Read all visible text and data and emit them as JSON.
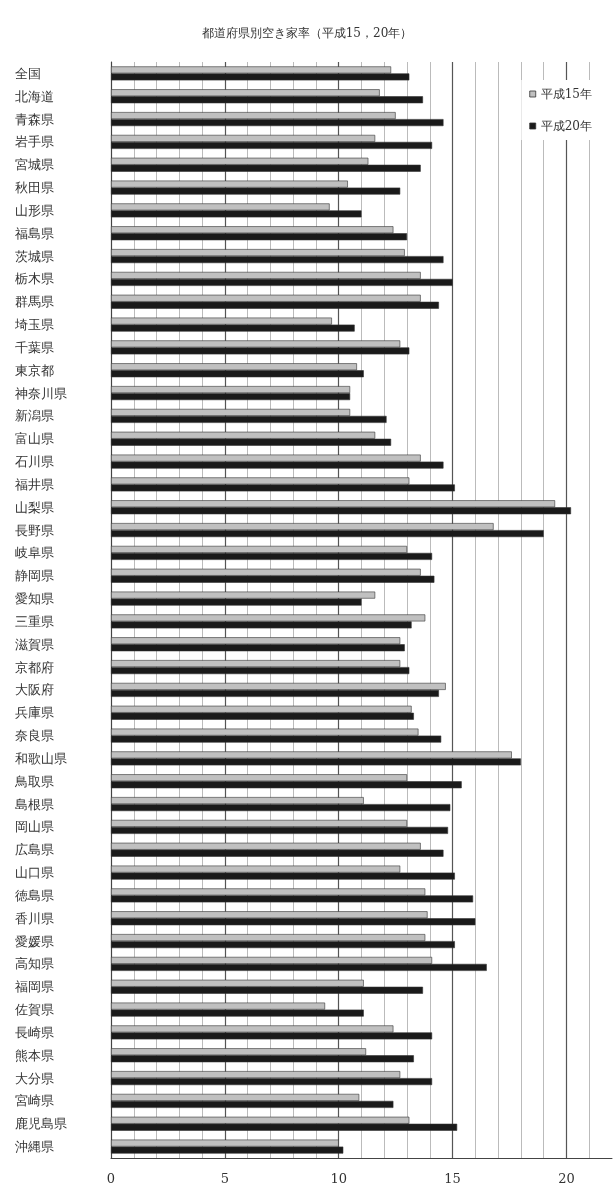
{
  "chart_data": {
    "type": "bar",
    "orientation": "horizontal",
    "title": "都道府県別空き家率（平成15，20年）",
    "categories": [
      "全国",
      "北海道",
      "青森県",
      "岩手県",
      "宮城県",
      "秋田県",
      "山形県",
      "福島県",
      "茨城県",
      "栃木県",
      "群馬県",
      "埼玉県",
      "千葉県",
      "東京都",
      "神奈川県",
      "新潟県",
      "富山県",
      "石川県",
      "福井県",
      "山梨県",
      "長野県",
      "岐阜県",
      "静岡県",
      "愛知県",
      "三重県",
      "滋賀県",
      "京都府",
      "大阪府",
      "兵庫県",
      "奈良県",
      "和歌山県",
      "鳥取県",
      "島根県",
      "岡山県",
      "広島県",
      "山口県",
      "徳島県",
      "香川県",
      "愛媛県",
      "高知県",
      "福岡県",
      "佐賀県",
      "長崎県",
      "熊本県",
      "大分県",
      "宮崎県",
      "鹿児島県",
      "沖縄県"
    ],
    "series": [
      {
        "name": "平成15年",
        "color": "#c0c0c0",
        "values": [
          12.3,
          11.8,
          12.5,
          11.6,
          11.3,
          10.4,
          9.6,
          12.4,
          12.9,
          13.6,
          13.6,
          9.7,
          12.7,
          10.8,
          10.5,
          10.5,
          11.6,
          13.6,
          13.1,
          19.5,
          16.8,
          13.0,
          13.6,
          11.6,
          13.8,
          12.7,
          12.7,
          14.7,
          13.2,
          13.5,
          17.6,
          13.0,
          11.1,
          13.0,
          13.6,
          12.7,
          13.8,
          13.9,
          13.8,
          14.1,
          11.1,
          9.4,
          12.4,
          11.2,
          12.7,
          10.9,
          13.1,
          10.0
        ]
      },
      {
        "name": "平成20年",
        "color": "#1a1a1a",
        "values": [
          13.1,
          13.7,
          14.6,
          14.1,
          13.6,
          12.7,
          11.0,
          13.0,
          14.6,
          15.0,
          14.4,
          10.7,
          13.1,
          11.1,
          10.5,
          12.1,
          12.3,
          14.6,
          15.1,
          20.2,
          19.0,
          14.1,
          14.2,
          11.0,
          13.2,
          12.9,
          13.1,
          14.4,
          13.3,
          14.5,
          18.0,
          15.4,
          14.9,
          14.8,
          14.6,
          15.1,
          15.9,
          16.0,
          15.1,
          16.5,
          13.7,
          11.1,
          14.1,
          13.3,
          14.1,
          12.4,
          15.2,
          10.2
        ]
      }
    ],
    "xlim": [
      0,
      22
    ],
    "xticks": [
      0,
      5,
      10,
      15,
      20
    ],
    "grid": "x",
    "legend": "top right"
  }
}
